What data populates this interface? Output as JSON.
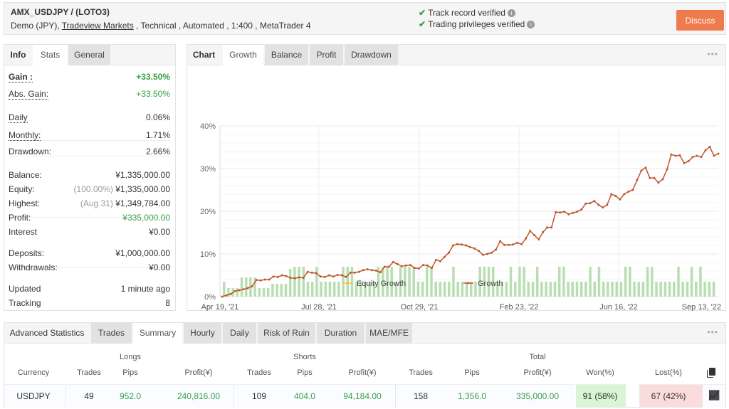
{
  "header": {
    "title": "AMX_USDJPY / (LOTO3)",
    "sub_prefix": "Demo (JPY), ",
    "broker": "Tradeview Markets",
    "sub_suffix": " , Technical , Automated , 1:400 , MetaTrader 4",
    "verified": [
      "Track record verified",
      "Trading privileges verified"
    ],
    "discuss": "Discuss"
  },
  "left": {
    "tabs": [
      "Info",
      "Stats",
      "General"
    ],
    "active_tab": "Stats",
    "rows": [
      {
        "k": "Gain :",
        "v": "+33.50%"
      },
      {
        "k": "Abs. Gain:",
        "v": "+33.50%"
      },
      {
        "k": "Daily",
        "v": "0.06%"
      },
      {
        "k": "Monthly:",
        "v": "1.71%"
      },
      {
        "k": "Drawdown:",
        "v": "2.66%"
      },
      {
        "k": "Balance:",
        "v": "¥1,335,000.00"
      },
      {
        "k": "Equity:",
        "m": "(100.00%)",
        "v": "¥1,335,000.00"
      },
      {
        "k": "Highest:",
        "m": "(Aug 31)",
        "v": "¥1,349,784.00"
      },
      {
        "k": "Profit:",
        "v": "¥335,000.00"
      },
      {
        "k": "Interest",
        "v": "¥0.00"
      },
      {
        "k": "Deposits:",
        "v": "¥1,000,000.00"
      },
      {
        "k": "Withdrawals:",
        "v": "¥0.00"
      },
      {
        "k": "Updated",
        "v": "1 minute ago"
      },
      {
        "k": "Tracking",
        "v": "8"
      }
    ]
  },
  "chart": {
    "tabs": [
      "Chart",
      "Growth",
      "Balance",
      "Profit",
      "Drawdown"
    ],
    "active_tab": "Growth",
    "more": "•••"
  },
  "chart_data": {
    "type": "line",
    "ylim": [
      0,
      40
    ],
    "yticks": [
      "0%",
      "10%",
      "20%",
      "30%",
      "40%"
    ],
    "xticks": [
      "Apr 19, '21",
      "Jul 28, '21",
      "Oct 29, '21",
      "Feb 23, '22",
      "Jun 16, '22",
      "Sep 13, '22"
    ],
    "legend": [
      "Equity Growth",
      "Growth"
    ],
    "legend_position": "bottom",
    "grid": true,
    "colors": {
      "growth": "#c0562d",
      "equity": "#f0c040",
      "bars": "#b9deb2"
    },
    "series": [
      {
        "name": "Growth",
        "values": [
          0,
          0.3,
          0.6,
          1.3,
          1.5,
          1.7,
          2,
          2.4,
          3.9,
          3.8,
          4,
          4,
          4.7,
          4.6,
          5,
          4.8,
          4.4,
          4.3,
          4.5,
          4.4,
          5.8,
          5.6,
          5.5,
          4.7,
          4.6,
          5,
          4.7,
          5.1,
          5,
          4.6,
          5.6,
          5.6,
          5.8,
          6.2,
          6.4,
          6.2,
          6.1,
          5.7,
          7,
          7,
          8.1,
          7.6,
          7.1,
          7.3,
          7.4,
          6.7,
          6.6,
          7.4,
          7.3,
          6.7,
          8.6,
          8.3,
          9.3,
          10.3,
          12,
          12.3,
          12.2,
          12,
          11.6,
          11.3,
          10.7,
          9.8,
          10,
          10.3,
          11,
          13,
          12.1,
          12.1,
          12.2,
          12.6,
          12.3,
          13.6,
          15.4,
          14.4,
          13.4,
          15.1,
          16.2,
          16.2,
          19.8,
          19.7,
          19.9,
          19.3,
          19.6,
          19.9,
          20.4,
          21.8,
          21.9,
          22.4,
          21.5,
          20.9,
          21.5,
          24,
          23.6,
          22.8,
          24,
          24.6,
          25,
          27.3,
          29.5,
          30.2,
          27.8,
          27.8,
          26.7,
          27.5,
          29.8,
          33.3,
          33,
          33.1,
          31.3,
          31.7,
          32.7,
          33,
          32.7,
          34.3,
          35.1,
          33,
          33.5
        ]
      }
    ],
    "bars": [
      3.5,
      2,
      2,
      2,
      4.5,
      4.5,
      4.5,
      4.5,
      2,
      2,
      2,
      3,
      3,
      3,
      3,
      6.5,
      7,
      7,
      7,
      3.5,
      3.5,
      7,
      3.5,
      3.5,
      3.5,
      3.5,
      3.5,
      7,
      7,
      7,
      3.5,
      3.5,
      3.5,
      3.5,
      3.5,
      7,
      7,
      7,
      7,
      3.5,
      7,
      7,
      7,
      7,
      3.5,
      3.5,
      7,
      7,
      3.5,
      3.5,
      3.5,
      3.5,
      7,
      3.5,
      3.5,
      3.5,
      3.5,
      3.5,
      7,
      7,
      7,
      7,
      3.5,
      3.5,
      3.5,
      7,
      3.5,
      7,
      7,
      3.5,
      3.5,
      7,
      3.5,
      3.5,
      3.5,
      3.5,
      7,
      7,
      3.5,
      3.5,
      3.5,
      3.5,
      3.5,
      7,
      3.5,
      7,
      3.5,
      3.5,
      3.5,
      3.5,
      3.5,
      7,
      7,
      3.5,
      3.5,
      3.5,
      7,
      7,
      3.5,
      3.5,
      3.5,
      3.5,
      3.5,
      7,
      3.5,
      3.5,
      7,
      3.5,
      7,
      3.5,
      3.5,
      3.5
    ]
  },
  "adv": {
    "tabs": [
      "Advanced Statistics",
      "Trades",
      "Summary",
      "Hourly",
      "Daily",
      "Risk of Ruin",
      "Duration",
      "MAE/MFE"
    ],
    "active_tab": "Summary",
    "more": "•••",
    "groups": [
      "Longs",
      "Shorts",
      "Total"
    ],
    "columns": [
      "Currency",
      "Trades",
      "Pips",
      "Profit(¥)",
      "Trades",
      "Pips",
      "Profit(¥)",
      "Trades",
      "Pips",
      "Profit(¥)",
      "Won(%)",
      "Lost(%)"
    ],
    "row": [
      "USDJPY",
      "49",
      "952.0",
      "240,816.00",
      "109",
      "404.0",
      "94,184.00",
      "158",
      "1,356.0",
      "335,000.00",
      "91 (58%)",
      "67 (42%)"
    ]
  }
}
